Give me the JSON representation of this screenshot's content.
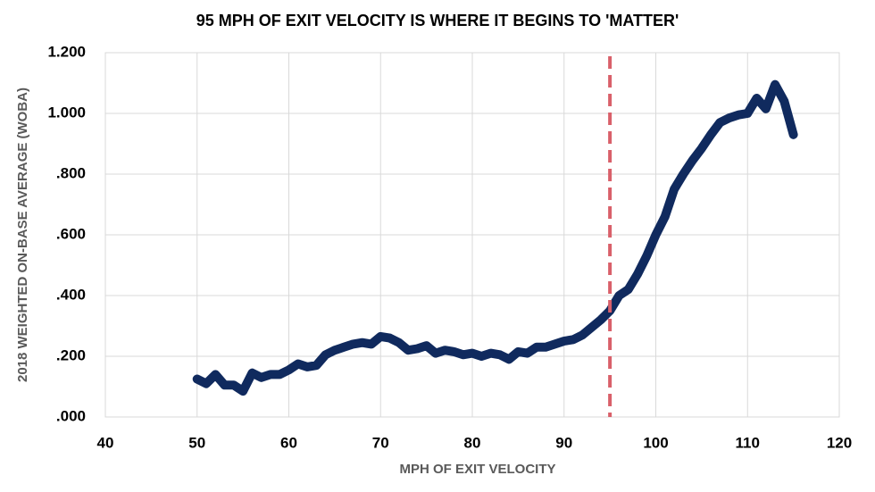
{
  "chart_data": {
    "type": "line",
    "title": "95 MPH OF EXIT VELOCITY IS WHERE IT BEGINS TO 'MATTER'",
    "x_label": "MPH OF EXIT VELOCITY",
    "y_label": "2018 WEIGHTED ON-BASE AVERAGE (WOBA)",
    "x": [
      50,
      51,
      52,
      53,
      54,
      55,
      56,
      57,
      58,
      59,
      60,
      61,
      62,
      63,
      64,
      65,
      66,
      67,
      68,
      69,
      70,
      71,
      72,
      73,
      74,
      75,
      76,
      77,
      78,
      79,
      80,
      81,
      82,
      83,
      84,
      85,
      86,
      87,
      88,
      89,
      90,
      91,
      92,
      93,
      94,
      95,
      96,
      97,
      98,
      99,
      100,
      101,
      102,
      103,
      104,
      105,
      106,
      107,
      108,
      109,
      110,
      111,
      112,
      113,
      114,
      115
    ],
    "series": [
      {
        "color": "#102a5e",
        "values": [
          0.125,
          0.11,
          0.14,
          0.105,
          0.105,
          0.085,
          0.145,
          0.13,
          0.14,
          0.14,
          0.155,
          0.175,
          0.165,
          0.17,
          0.205,
          0.22,
          0.23,
          0.24,
          0.245,
          0.24,
          0.265,
          0.26,
          0.245,
          0.22,
          0.225,
          0.235,
          0.21,
          0.22,
          0.215,
          0.205,
          0.21,
          0.2,
          0.21,
          0.205,
          0.19,
          0.215,
          0.21,
          0.23,
          0.23,
          0.24,
          0.25,
          0.255,
          0.27,
          0.295,
          0.32,
          0.35,
          0.4,
          0.42,
          0.47,
          0.53,
          0.6,
          0.66,
          0.75,
          0.8,
          0.845,
          0.885,
          0.93,
          0.97,
          0.985,
          0.995,
          1.0,
          1.05,
          1.015,
          1.095,
          1.04,
          0.93
        ]
      }
    ],
    "vline": {
      "value": 95,
      "color": "#d9606a"
    },
    "xlim": [
      40,
      120
    ],
    "xticks": [
      40,
      50,
      60,
      70,
      80,
      90,
      100,
      110,
      120
    ],
    "ylim": [
      0,
      1.2
    ],
    "yticks": [
      {
        "value": 0,
        "label": ".000"
      },
      {
        "value": 0.2,
        "label": ".200"
      },
      {
        "value": 0.4,
        "label": ".400"
      },
      {
        "value": 0.6,
        "label": ".600"
      },
      {
        "value": 0.8,
        "label": ".800"
      },
      {
        "value": 1.0,
        "label": "1.000"
      },
      {
        "value": 1.2,
        "label": "1.200"
      }
    ],
    "grid": true
  }
}
